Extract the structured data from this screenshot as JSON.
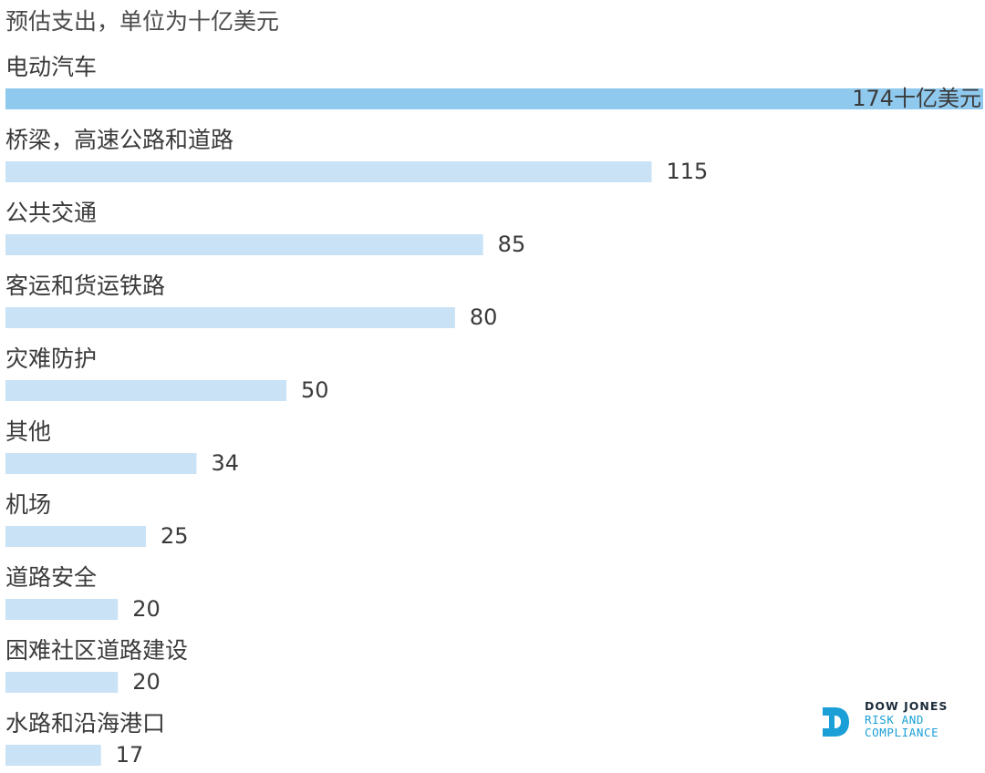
{
  "chart_data": {
    "type": "bar",
    "orientation": "horizontal",
    "subtitle": "预估支出，单位为十亿美元",
    "categories": [
      "电动汽车",
      "桥梁，高速公路和道路",
      "公共交通",
      "客运和货运铁路",
      "灾难防护",
      "其他",
      "机场",
      "道路安全",
      "困难社区道路建设",
      "水路和沿海港口"
    ],
    "values": [
      174,
      115,
      85,
      80,
      50,
      34,
      25,
      20,
      20,
      17
    ],
    "value_labels": [
      "174十亿美元",
      "115",
      "85",
      "80",
      "50",
      "34",
      "25",
      "20",
      "20",
      "17"
    ],
    "xlim": [
      0,
      174
    ],
    "grid": false,
    "legend": "none",
    "colors": {
      "highlight": "#8fc9ee",
      "bar": "#c9e2f6",
      "text": "#3a3a3a"
    }
  },
  "logo": {
    "line1": "DOW JONES",
    "line2": "RISK AND",
    "line3": "COMPLIANCE",
    "colors": {
      "mark": "#1a9fd6",
      "dark": "#1c2b3a"
    }
  }
}
